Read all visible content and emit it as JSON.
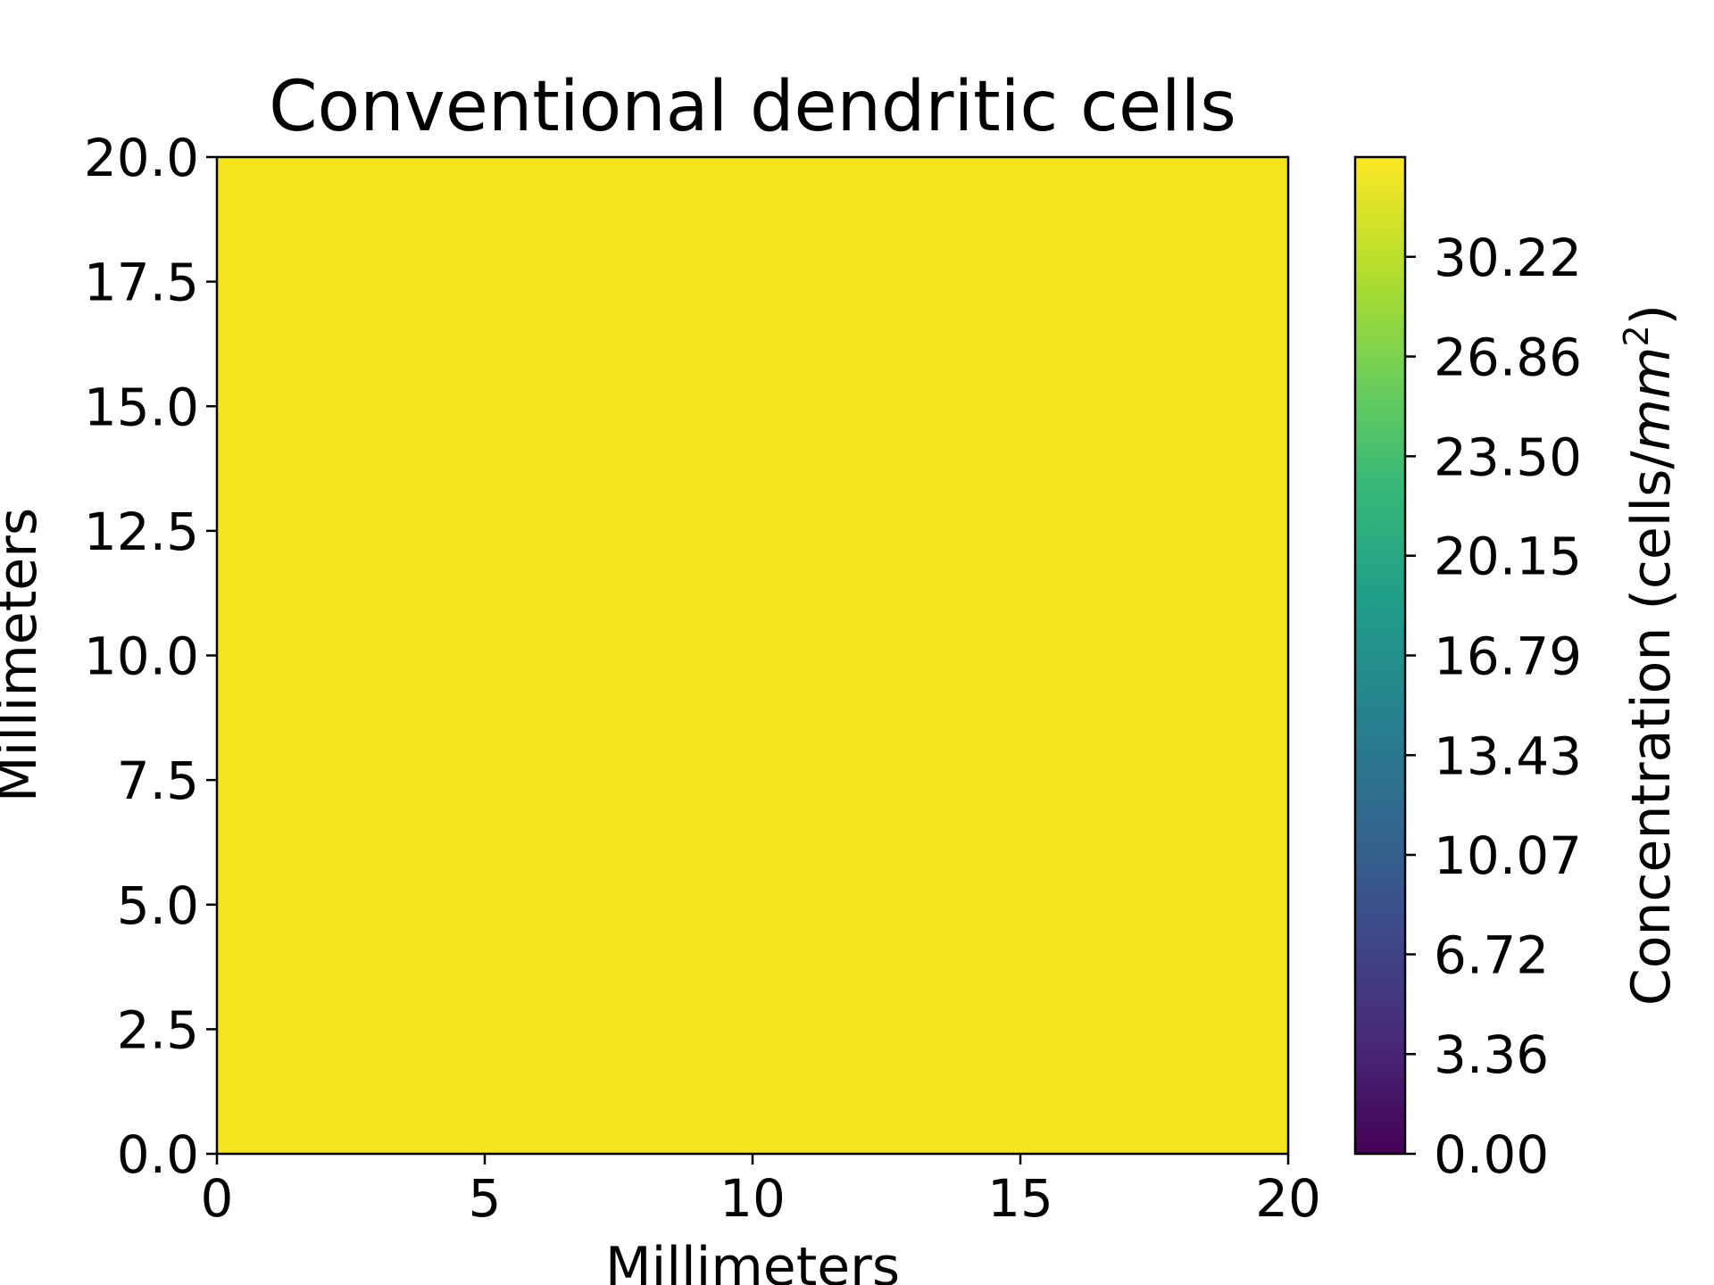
{
  "chart_data": {
    "type": "heatmap",
    "title": "Conventional dendritic cells",
    "xlabel": "Millimeters",
    "ylabel": "Millimeters",
    "xlim": [
      0,
      20
    ],
    "ylim": [
      0,
      20
    ],
    "x_ticks": [
      "0",
      "5",
      "10",
      "15",
      "20"
    ],
    "x_tick_values": [
      0,
      5,
      10,
      15,
      20
    ],
    "y_ticks": [
      "0.0",
      "2.5",
      "5.0",
      "7.5",
      "10.0",
      "12.5",
      "15.0",
      "17.5",
      "20.0"
    ],
    "y_tick_values": [
      0,
      2.5,
      5,
      7.5,
      10,
      12.5,
      15,
      17.5,
      20
    ],
    "field_value": 33.58,
    "field_color": "#f5e51f",
    "grid": false,
    "colorbar": {
      "label_main": "Concentration (cells/",
      "label_unit": "mm",
      "label_sup": "2",
      "label_close": ")",
      "colormap": "viridis",
      "range": [
        0,
        33.58
      ],
      "ticks": [
        "0.00",
        "3.36",
        "6.72",
        "10.07",
        "13.43",
        "16.79",
        "20.15",
        "23.50",
        "26.86",
        "30.22"
      ],
      "tick_values": [
        0,
        3.36,
        6.72,
        10.07,
        13.43,
        16.79,
        20.15,
        23.5,
        26.86,
        30.22
      ],
      "colors": [
        "#440154",
        "#482878",
        "#3e4989",
        "#31688e",
        "#26828e",
        "#1f9e89",
        "#35b779",
        "#6ece58",
        "#b5de2b",
        "#fde725"
      ]
    }
  }
}
